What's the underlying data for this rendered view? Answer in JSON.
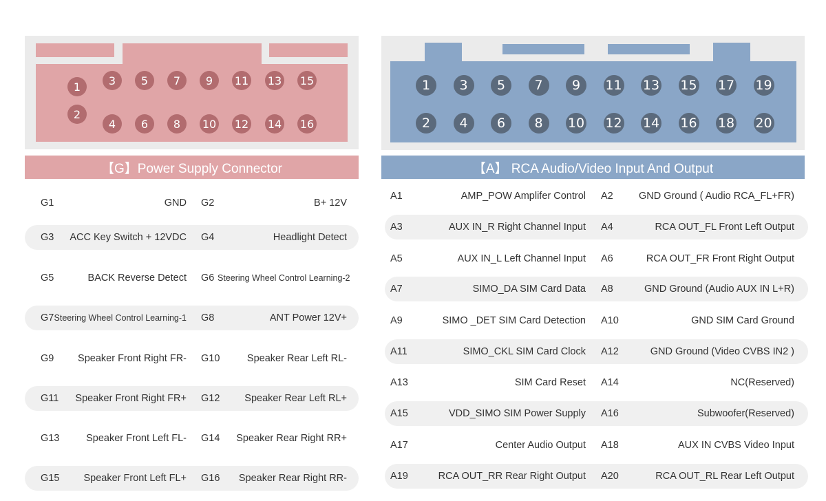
{
  "g_connector": {
    "title": "【G】Power Supply Connector",
    "pins": [
      "1",
      "2",
      "3",
      "4",
      "5",
      "6",
      "7",
      "8",
      "9",
      "10",
      "11",
      "12",
      "13",
      "14",
      "15",
      "16"
    ],
    "rows": [
      {
        "id1": "G1",
        "desc1": "GND",
        "id2": "G2",
        "desc2": "B+  12V"
      },
      {
        "id1": "G3",
        "desc1": "ACC Key Switch + 12VDC",
        "id2": "G4",
        "desc2": "Headlight Detect"
      },
      {
        "id1": "G5",
        "desc1": "BACK Reverse Detect",
        "id2": "G6",
        "desc2": "Steering Wheel Control Learning-2"
      },
      {
        "id1": "G7",
        "desc1": "Steering Wheel Control Learning-1",
        "id2": "G8",
        "desc2": "ANT Power 12V+"
      },
      {
        "id1": "G9",
        "desc1": "Speaker Front Right FR-",
        "id2": "G10",
        "desc2": "Speaker Rear Left RL-"
      },
      {
        "id1": "G11",
        "desc1": "Speaker Front Right FR+",
        "id2": "G12",
        "desc2": "Speaker Rear Left RL+"
      },
      {
        "id1": "G13",
        "desc1": "Speaker Front Left FL-",
        "id2": "G14",
        "desc2": "Speaker Rear Right RR+"
      },
      {
        "id1": "G15",
        "desc1": "Speaker Front Left FL+",
        "id2": "G16",
        "desc2": "Speaker Rear Right RR-"
      }
    ]
  },
  "a_connector": {
    "title": "【A】  RCA Audio/Video Input And Output",
    "pins": [
      "1",
      "2",
      "3",
      "4",
      "5",
      "6",
      "7",
      "8",
      "9",
      "10",
      "11",
      "12",
      "13",
      "14",
      "15",
      "16",
      "17",
      "18",
      "19",
      "20"
    ],
    "rows": [
      {
        "id1": "A1",
        "desc1": "AMP_POW Amplifer Control",
        "id2": "A2",
        "desc2": "GND Ground ( Audio RCA_FL+FR)"
      },
      {
        "id1": "A3",
        "desc1": "AUX IN_R Right Channel Input",
        "id2": "A4",
        "desc2": "RCA OUT_FL Front Left Output"
      },
      {
        "id1": "A5",
        "desc1": "AUX IN_L Left Channel Input",
        "id2": "A6",
        "desc2": "RCA OUT_FR Front Right Output"
      },
      {
        "id1": "A7",
        "desc1": "SIMO_DA  SIM Card Data",
        "id2": "A8",
        "desc2": "GND Ground (Audio AUX IN L+R)"
      },
      {
        "id1": "A9",
        "desc1": "SIMO _DET SIM Card Detection",
        "id2": "A10",
        "desc2": "GND SIM Card Ground"
      },
      {
        "id1": "A11",
        "desc1": "SIMO_CKL SIM Card Clock",
        "id2": "A12",
        "desc2": "GND Ground (Video CVBS IN2 )"
      },
      {
        "id1": "A13",
        "desc1": "SIM Card Reset",
        "id2": "A14",
        "desc2": "NC(Reserved)"
      },
      {
        "id1": "A15",
        "desc1": "VDD_SIMO SIM Power Supply",
        "id2": "A16",
        "desc2": "Subwoofer(Reserved)"
      },
      {
        "id1": "A17",
        "desc1": "Center Audio Output",
        "id2": "A18",
        "desc2": "AUX IN CVBS Video Input"
      },
      {
        "id1": "A19",
        "desc1": "RCA OUT_RR Rear Right Output",
        "id2": "A20",
        "desc2": "RCA OUT_RL Rear Left Output"
      }
    ]
  },
  "colors": {
    "g_accent": "#e0a5a7",
    "g_pin": "#b26c6f",
    "a_accent": "#8aa6c7",
    "a_pin": "#5b6a7c",
    "frame_bg": "#ebebeb",
    "row_shade": "#f0f0f0"
  }
}
